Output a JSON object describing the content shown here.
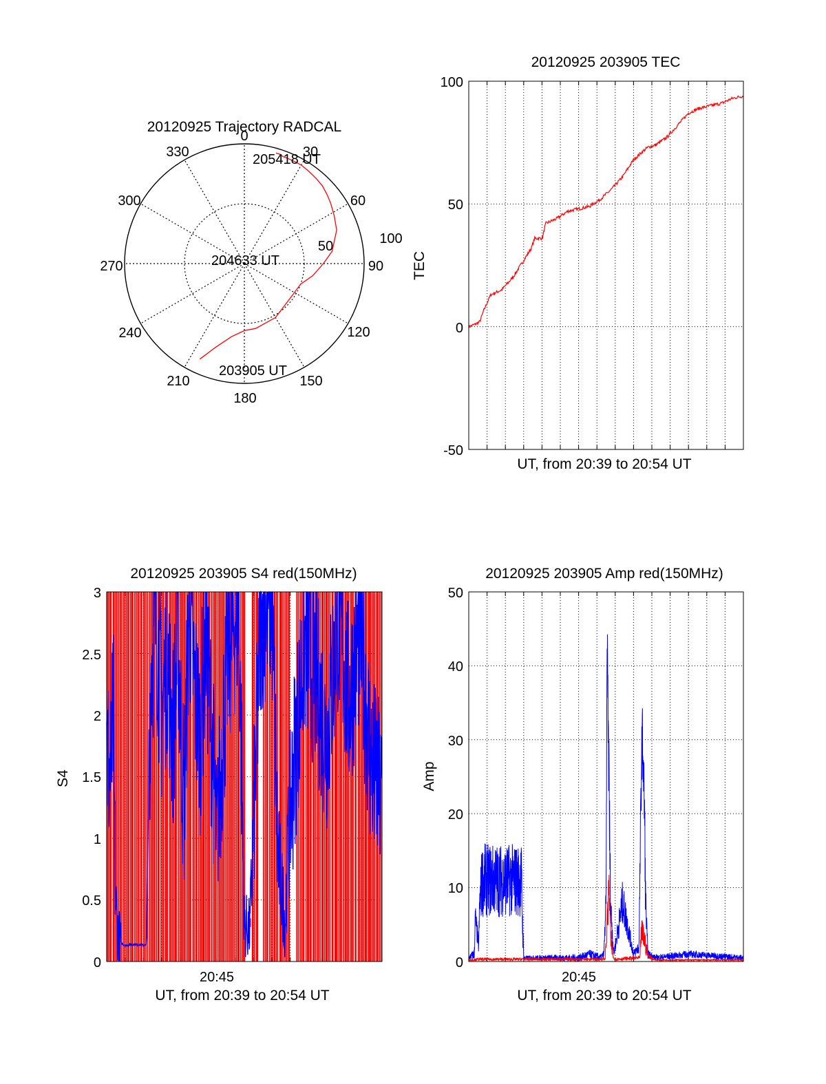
{
  "colors": {
    "red": "#ff0000",
    "blue": "#0000ff",
    "axis": "#000000",
    "grid": "#000000"
  },
  "chart_data": [
    {
      "type": "polar",
      "title": "20120925 Trajectory RADCAL",
      "azimuth_labels": [
        "0",
        "30",
        "60",
        "90",
        "120",
        "150",
        "180",
        "210",
        "240",
        "270",
        "300",
        "330"
      ],
      "radial_labels": [
        "50",
        "100"
      ],
      "radial_max": 100,
      "point_labels": [
        "205418 UT",
        "204633 UT",
        "203905 UT"
      ],
      "series": [
        {
          "color": "red",
          "points": [
            [
              205,
              88
            ],
            [
              199,
              74
            ],
            [
              190,
              62
            ],
            [
              180,
              56
            ],
            [
              170,
              55
            ],
            [
              150,
              52
            ],
            [
              125,
              48
            ],
            [
              110,
              50
            ],
            [
              100,
              58
            ],
            [
              90,
              66
            ],
            [
              82,
              74
            ],
            [
              70,
              82
            ],
            [
              62,
              85
            ],
            [
              55,
              88
            ],
            [
              50,
              90
            ],
            [
              45,
              92
            ],
            [
              40,
              93
            ],
            [
              35,
              94
            ],
            [
              30,
              95
            ],
            [
              26,
              95
            ],
            [
              22,
              95
            ],
            [
              20,
              95
            ],
            [
              18,
              96
            ],
            [
              16,
              96
            ]
          ]
        }
      ]
    },
    {
      "type": "line",
      "title": "20120925 203905 TEC",
      "xlabel": "UT, from 20:39 to 20:54 UT",
      "ylabel": "TEC",
      "xlim": [
        20.65,
        20.9
      ],
      "ylim": [
        -50,
        100
      ],
      "yticks": [
        "-50",
        "0",
        "50",
        "100"
      ],
      "series": [
        {
          "color": "red",
          "x": [
            20.65,
            20.656,
            20.66,
            20.664,
            20.667,
            20.67,
            20.675,
            20.68,
            20.69,
            20.7,
            20.707,
            20.71,
            20.717,
            20.72,
            20.73,
            20.74,
            20.75,
            20.76,
            20.77,
            20.78,
            20.79,
            20.8,
            20.81,
            20.813,
            20.82,
            20.83,
            20.84,
            20.85,
            20.86,
            20.87,
            20.88,
            20.89,
            20.9
          ],
          "y": [
            0,
            1,
            2,
            7,
            10,
            13,
            14,
            15,
            20,
            27,
            32,
            36,
            36,
            42,
            44,
            47,
            48,
            49,
            52,
            56,
            61,
            68,
            72,
            73,
            74,
            77,
            82,
            87,
            89,
            90,
            91,
            93,
            94
          ]
        }
      ]
    },
    {
      "type": "line",
      "title": "20120925 203905 S4 red(150MHz)",
      "xlabel": "UT, from 20:39 to 20:54 UT",
      "ylabel": "S4",
      "xlim": [
        20.65,
        20.9
      ],
      "ylim": [
        0,
        3
      ],
      "xticks": [
        "20:45"
      ],
      "yticks": [
        "0",
        "0.5",
        "1",
        "1.5",
        "2",
        "2.5",
        "3"
      ],
      "series": [
        {
          "color": "red",
          "style": "dense-spikes"
        },
        {
          "color": "blue",
          "x": [
            20.65,
            20.654,
            20.656,
            20.658,
            20.66,
            20.663,
            20.667,
            20.675,
            20.686,
            20.69,
            20.695,
            20.7,
            20.705,
            20.71,
            20.715,
            20.72,
            20.725,
            20.73,
            20.735,
            20.74,
            20.75,
            20.76,
            20.77,
            20.775,
            20.78,
            20.79,
            20.8,
            20.805,
            20.81,
            20.812,
            20.815,
            20.82,
            20.83,
            20.84,
            20.85,
            20.86,
            20.87,
            20.88,
            20.89,
            20.9
          ],
          "y": [
            1.7,
            1.5,
            2.0,
            0.5,
            0.25,
            0.15,
            0.13,
            0.14,
            0.13,
            2.4,
            2.8,
            2.0,
            2.5,
            1.8,
            2.6,
            1.2,
            2.9,
            2.2,
            1.8,
            2.7,
            1.0,
            2.5,
            2.9,
            0.3,
            0.25,
            2.8,
            3.0,
            0.9,
            0.5,
            0.3,
            1.0,
            1.6,
            2.6,
            2.3,
            1.8,
            2.8,
            2.1,
            2.7,
            1.6,
            1.3
          ]
        }
      ]
    },
    {
      "type": "line",
      "title": "20120925 203905 Amp red(150MHz)",
      "xlabel": "UT, from 20:39 to 20:54 UT",
      "ylabel": "Amp",
      "xlim": [
        20.65,
        20.9
      ],
      "ylim": [
        0,
        50
      ],
      "xticks": [
        "20:45"
      ],
      "yticks": [
        "0",
        "10",
        "20",
        "30",
        "40",
        "50"
      ],
      "series": [
        {
          "color": "blue",
          "style": "noisy",
          "x": [
            20.65,
            20.655,
            20.656,
            20.659,
            20.66,
            20.662,
            20.698,
            20.699,
            20.7,
            20.75,
            20.76,
            20.77,
            20.773,
            20.775,
            20.776,
            20.778,
            20.779,
            20.782,
            20.79,
            20.8,
            20.805,
            20.807,
            20.808,
            20.81,
            20.811,
            20.813,
            20.82,
            20.85,
            20.9
          ],
          "y": [
            0.5,
            1,
            6,
            2,
            8,
            11,
            11,
            5,
            0.5,
            0.5,
            1,
            0.5,
            1,
            8,
            44,
            20,
            8,
            1,
            8,
            1,
            2,
            25,
            31,
            20,
            8,
            1,
            0.5,
            1,
            0.5
          ],
          "amp": [
            0.3,
            0.8,
            2,
            1,
            3,
            5,
            5,
            3,
            0.3,
            0.5,
            0.6,
            0.5,
            0.5,
            3,
            4,
            8,
            3,
            0.5,
            3,
            0.5,
            1,
            5,
            4,
            6,
            3,
            0.6,
            0.4,
            0.5,
            0.4
          ]
        },
        {
          "color": "red",
          "style": "noisy",
          "x": [
            20.65,
            20.66,
            20.7,
            20.774,
            20.776,
            20.778,
            20.779,
            20.782,
            20.806,
            20.807,
            20.81,
            20.813,
            20.82,
            20.9
          ],
          "y": [
            0.2,
            0.3,
            0.3,
            0.3,
            5,
            10,
            3,
            0.3,
            0.5,
            4,
            3,
            0.8,
            0.2,
            0.2
          ],
          "amp": [
            0.1,
            0.2,
            0.2,
            0.2,
            3,
            4,
            2,
            0.2,
            0.3,
            2,
            2,
            0.4,
            0.1,
            0.1
          ]
        }
      ]
    }
  ]
}
